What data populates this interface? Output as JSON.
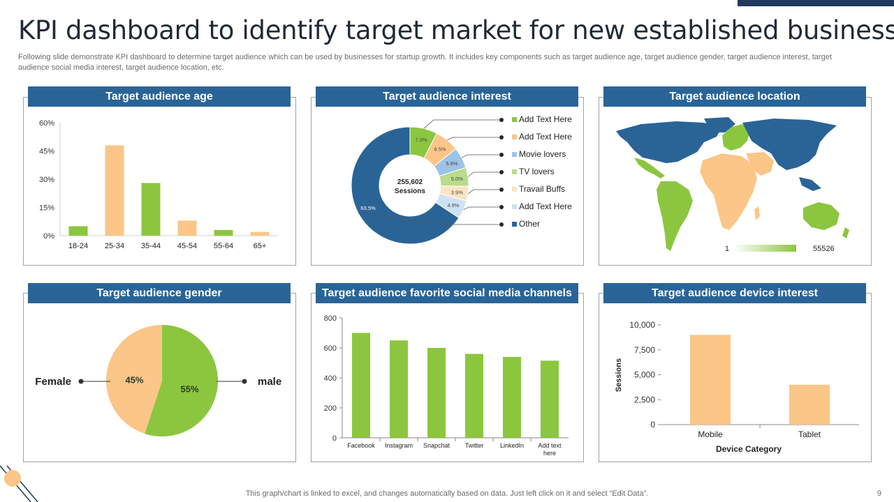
{
  "slide": {
    "title": "KPI dashboard to identify target market for new established business",
    "subtitle": "Following slide demonstrate KPI dashboard to determine target audience which can be used by businesses for startup growth. It includes key components such as target audience age, target audience gender, target audience interest, target audience social media interest, target audience location, etc.",
    "footer": "This graph/chart is linked to excel,  and changes automatically based on data. Just left click on it and select “Edit Data”.",
    "page_number": "9"
  },
  "colors": {
    "blue": "#2a6496",
    "green": "#8cc63f",
    "orange": "#fbc687",
    "header": "#2a6496"
  },
  "panels": {
    "age": "Target audience age",
    "interest": "Target audience interest",
    "location": "Target audience location",
    "gender": "Target audience gender",
    "social": "Target audience favorite social media channels",
    "device": "Target audience device interest"
  },
  "chart_data": [
    {
      "type": "bar",
      "categories": [
        "18-24",
        "25-34",
        "35-44",
        "45-54",
        "55-64",
        "65+"
      ],
      "values": [
        5,
        48,
        28,
        8,
        3,
        2
      ],
      "colors": [
        "#8cc63f",
        "#fbc687",
        "#8cc63f",
        "#fbc687",
        "#8cc63f",
        "#fbc687"
      ],
      "yticks": [
        "0%",
        "15%",
        "30%",
        "45%",
        "60%"
      ],
      "ylim": [
        0,
        60
      ]
    },
    {
      "type": "pie",
      "center_value": "255,602",
      "center_label": "Sessions",
      "slices": [
        {
          "label": "Add Text Here",
          "value": 7.3,
          "text": "7.3%",
          "color": "#8cc63f"
        },
        {
          "label": "Add Text Here",
          "value": 6.5,
          "text": "6.5%",
          "color": "#fbc687"
        },
        {
          "label": "Movie lovers",
          "value": 5.6,
          "text": "5.6%",
          "color": "#9dc3e6"
        },
        {
          "label": "TV lovers",
          "value": 5.0,
          "text": "5.0%",
          "color": "#b8dc8a"
        },
        {
          "label": "Travail Buffs",
          "value": 3.9,
          "text": "3.9%",
          "color": "#fde3c4"
        },
        {
          "label": "Add Text Here",
          "value": 4.9,
          "text": "4.9%",
          "color": "#cfe2f3"
        },
        {
          "label": "Other",
          "value": 63.5,
          "text": "63.5%",
          "color": "#2a6496"
        }
      ]
    },
    {
      "type": "map",
      "legend_min": "1",
      "legend_max": "55526"
    },
    {
      "type": "pie",
      "slices": [
        {
          "label": "male",
          "value": 55,
          "text": "55%",
          "color": "#8cc63f"
        },
        {
          "label": "Female",
          "value": 45,
          "text": "45%",
          "color": "#fbc687"
        }
      ]
    },
    {
      "type": "bar",
      "categories": [
        "Facebook",
        "Instagram",
        "Snapchat",
        "Twitter",
        "LinkedIn",
        "Add text here"
      ],
      "values": [
        700,
        650,
        600,
        560,
        540,
        515
      ],
      "yticks": [
        "0",
        "200",
        "400",
        "600",
        "800"
      ],
      "ylim": [
        0,
        800
      ],
      "color": "#8cc63f"
    },
    {
      "type": "bar",
      "categories": [
        "Mobile",
        "Tablet"
      ],
      "values": [
        9000,
        4000
      ],
      "yticks": [
        "0",
        "2,500",
        "5,000",
        "7,500",
        "10,000"
      ],
      "ylim": [
        0,
        10000
      ],
      "xlabel": "Device Category",
      "ylabel": "Sessions",
      "color": "#fbc687"
    }
  ]
}
